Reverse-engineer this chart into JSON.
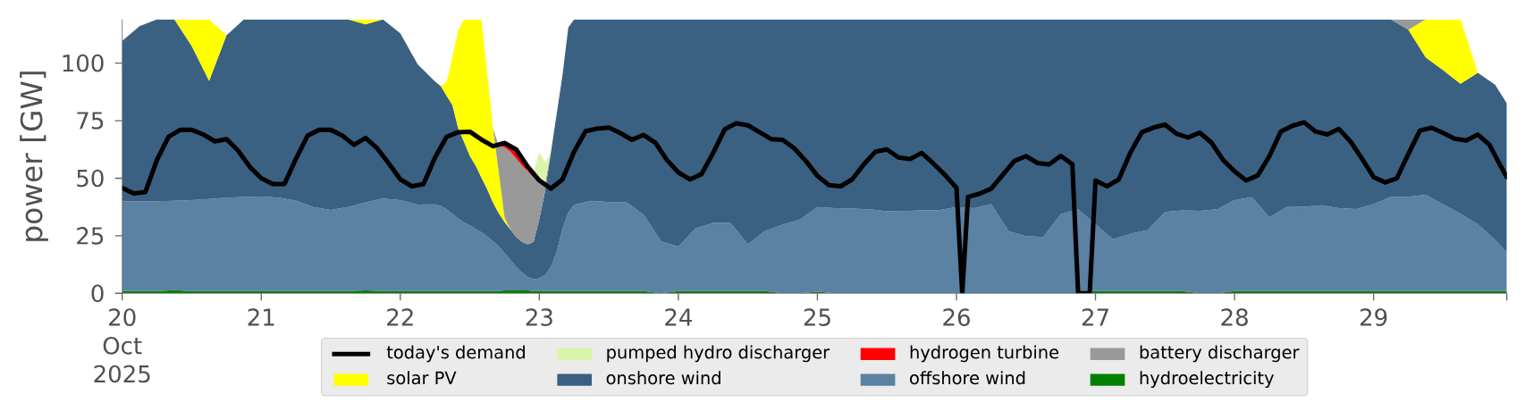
{
  "chart_data": {
    "type": "area",
    "stacked": true,
    "ylabel": "power [GW]",
    "legend": "bottom",
    "xlim": [
      "2025-10-20T00:00",
      "2025-10-29T23:00"
    ],
    "ylim": [
      0,
      119
    ],
    "xticks": [
      {
        "value": "2025-10-20",
        "label": "20 Oct 2025"
      },
      {
        "value": "2025-10-21",
        "label": "21"
      },
      {
        "value": "2025-10-22",
        "label": "22"
      },
      {
        "value": "2025-10-23",
        "label": "23"
      },
      {
        "value": "2025-10-24",
        "label": "24"
      },
      {
        "value": "2025-10-25",
        "label": "25"
      },
      {
        "value": "2025-10-26",
        "label": "26"
      },
      {
        "value": "2025-10-27",
        "label": "27"
      },
      {
        "value": "2025-10-28",
        "label": "28"
      },
      {
        "value": "2025-10-29",
        "label": "29"
      },
      {
        "value": "2025-10-29T23:00",
        "label": null
      }
    ],
    "yticks": [
      0,
      25,
      50,
      75,
      100
    ],
    "x": [
      "2025-10-20T00:00",
      "2025-10-20T03:00",
      "2025-10-20T06:00",
      "2025-10-20T09:00",
      "2025-10-20T12:00",
      "2025-10-20T15:00",
      "2025-10-20T18:00",
      "2025-10-20T21:00",
      "2025-10-21T00:00",
      "2025-10-21T03:00",
      "2025-10-21T06:00",
      "2025-10-21T09:00",
      "2025-10-21T12:00",
      "2025-10-21T15:00",
      "2025-10-21T18:00",
      "2025-10-21T21:00",
      "2025-10-22T00:00",
      "2025-10-22T03:00",
      "2025-10-22T06:00",
      "2025-10-22T07:00",
      "2025-10-22T08:00",
      "2025-10-22T09:00",
      "2025-10-22T10:00",
      "2025-10-22T11:00",
      "2025-10-22T12:00",
      "2025-10-22T13:00",
      "2025-10-22T14:00",
      "2025-10-22T15:00",
      "2025-10-22T16:00",
      "2025-10-22T17:00",
      "2025-10-22T18:00",
      "2025-10-22T19:00",
      "2025-10-22T20:00",
      "2025-10-22T21:00",
      "2025-10-22T22:00",
      "2025-10-22T23:00",
      "2025-10-23T00:00",
      "2025-10-23T01:00",
      "2025-10-23T02:00",
      "2025-10-23T03:00",
      "2025-10-23T04:00",
      "2025-10-23T05:00",
      "2025-10-23T06:00",
      "2025-10-23T09:00",
      "2025-10-23T12:00",
      "2025-10-23T15:00",
      "2025-10-23T18:00",
      "2025-10-23T21:00",
      "2025-10-24T00:00",
      "2025-10-24T03:00",
      "2025-10-24T06:00",
      "2025-10-24T09:00",
      "2025-10-24T12:00",
      "2025-10-24T15:00",
      "2025-10-24T18:00",
      "2025-10-24T21:00",
      "2025-10-25T00:00",
      "2025-10-25T03:00",
      "2025-10-25T06:00",
      "2025-10-25T09:00",
      "2025-10-25T12:00",
      "2025-10-25T15:00",
      "2025-10-25T18:00",
      "2025-10-25T21:00",
      "2025-10-26T00:00",
      "2025-10-26T03:00",
      "2025-10-26T06:00",
      "2025-10-26T09:00",
      "2025-10-26T12:00",
      "2025-10-26T15:00",
      "2025-10-26T18:00",
      "2025-10-26T21:00",
      "2025-10-27T00:00",
      "2025-10-27T03:00",
      "2025-10-27T06:00",
      "2025-10-27T09:00",
      "2025-10-27T12:00",
      "2025-10-27T15:00",
      "2025-10-27T18:00",
      "2025-10-27T21:00",
      "2025-10-28T00:00",
      "2025-10-28T03:00",
      "2025-10-28T06:00",
      "2025-10-28T09:00",
      "2025-10-28T12:00",
      "2025-10-28T15:00",
      "2025-10-28T18:00",
      "2025-10-28T21:00",
      "2025-10-29T00:00",
      "2025-10-29T03:00",
      "2025-10-29T06:00",
      "2025-10-29T09:00",
      "2025-10-29T12:00",
      "2025-10-29T15:00",
      "2025-10-29T18:00",
      "2025-10-29T21:00",
      "2025-10-29T23:00"
    ],
    "series": [
      {
        "name": "hydroelectricity",
        "color": "#008000",
        "values": [
          1,
          1,
          1,
          1.4,
          1,
          1,
          1,
          1,
          1,
          1,
          1,
          1,
          1,
          1,
          1.3,
          1,
          1,
          1,
          1,
          1,
          1,
          1,
          1,
          1,
          1,
          1,
          1,
          1,
          1,
          1,
          1.3,
          1.3,
          1.3,
          1.3,
          1.3,
          1,
          1,
          1,
          1,
          1,
          1,
          1,
          1,
          1,
          1,
          1,
          1,
          0,
          1,
          1,
          1,
          1,
          1,
          1,
          0,
          0,
          0.7,
          0,
          null,
          null,
          null,
          null,
          null,
          null,
          null,
          null,
          null,
          null,
          null,
          null,
          null,
          0,
          1,
          1,
          1,
          1,
          1,
          1,
          0,
          0,
          1,
          1,
          1,
          1,
          1,
          1,
          1,
          1,
          1,
          1,
          1,
          1,
          1,
          1,
          1,
          1,
          1
        ]
      },
      {
        "name": "offshore wind",
        "color": "#5b81a3",
        "values": [
          39,
          39,
          39,
          38.8,
          39.5,
          40,
          40.5,
          40.8,
          41,
          40.5,
          39.2,
          36.5,
          35.2,
          36.5,
          38.2,
          40.2,
          39.5,
          37.5,
          37.6,
          37,
          35.5,
          33.5,
          31.5,
          29.8,
          28.5,
          27,
          25.5,
          23.8,
          21.5,
          19.5,
          16.2,
          13.2,
          10.2,
          7.7,
          5.7,
          5.1,
          5.5,
          7,
          10.5,
          17,
          27,
          34,
          37.4,
          39.2,
          38.6,
          38.6,
          33.2,
          22.6,
          19.3,
          27.3,
          29.6,
          29.6,
          20.3,
          26.2,
          29.8,
          32,
          36.8,
          37,
          36.8,
          36.5,
          35.6,
          35.8,
          36,
          36.1,
          37.5,
          37,
          38.7,
          27,
          24.9,
          24.5,
          34.4,
          36.5,
          29,
          22.5,
          24.8,
          26.5,
          34.3,
          35,
          35.8,
          36.5,
          39.5,
          40.7,
          32,
          36.5,
          36.6,
          37.2,
          36,
          35.6,
          37.7,
          40.9,
          40.9,
          41.8,
          37.6,
          33.6,
          29,
          22.2,
          16.8
        ]
      },
      {
        "name": "onshore wind",
        "color": "#3a6182",
        "values": [
          69.7,
          76.1,
          79,
          78.8,
          66.9,
          51.3,
          70.6,
          77.2,
          77,
          77.5,
          78.8,
          81.5,
          82.8,
          81.5,
          77.3,
          77.8,
          72.5,
          61,
          53.4,
          52,
          49.3,
          47.2,
          39.1,
          35,
          30.2,
          27.5,
          23.8,
          20.4,
          16.9,
          14.3,
          13.5,
          13.2,
          13,
          13.3,
          14.3,
          16.2,
          25.8,
          36.5,
          49.8,
          60,
          66.8,
          80.5,
          80.6,
          78.8,
          79.4,
          79.4,
          84.8,
          96.4,
          98.7,
          90.7,
          88.4,
          88.4,
          97.7,
          91.8,
          89.2,
          87,
          81.5,
          82,
          82.2,
          82.5,
          83.4,
          83.2,
          83,
          82.9,
          81.5,
          82,
          80.3,
          92,
          94.1,
          94.5,
          84.6,
          82.5,
          89,
          95.5,
          93.2,
          91.5,
          83.7,
          83,
          83.2,
          82.5,
          78.5,
          77.3,
          86,
          81.5,
          81.4,
          80.8,
          82,
          82.4,
          80.3,
          77.1,
          72.6,
          59.7,
          58.4,
          56.4,
          65.8,
          67.3,
          64.7
        ]
      },
      {
        "name": "solar PV",
        "color": "#ffff00",
        "values": [
          null,
          null,
          null,
          0,
          11.6,
          26.7,
          0,
          null,
          null,
          null,
          null,
          null,
          null,
          0,
          2.2,
          0,
          null,
          null,
          null,
          0,
          6.2,
          21.1,
          42.6,
          53.2,
          59.3,
          63.5,
          68.7,
          50.5,
          32.2,
          17.8,
          1.9,
          0,
          null,
          null,
          null,
          null,
          null,
          null,
          null,
          null,
          null,
          null,
          null,
          null,
          null,
          null,
          null,
          null,
          null,
          null,
          null,
          null,
          null,
          null,
          null,
          null,
          null,
          null,
          null,
          null,
          null,
          null,
          null,
          null,
          null,
          null,
          null,
          null,
          null,
          null,
          null,
          null,
          null,
          null,
          null,
          null,
          null,
          null,
          null,
          null,
          null,
          null,
          null,
          null,
          null,
          null,
          null,
          null,
          null,
          null,
          0,
          16.5,
          22,
          28,
          0,
          null,
          null
        ]
      },
      {
        "name": "battery discharger",
        "color": "#999999",
        "values": [
          null,
          null,
          null,
          null,
          null,
          null,
          null,
          null,
          null,
          null,
          null,
          null,
          null,
          null,
          null,
          null,
          null,
          null,
          null,
          null,
          null,
          null,
          null,
          null,
          null,
          null,
          null,
          null,
          0,
          11.4,
          30.6,
          33.8,
          34,
          33.2,
          31.7,
          28.2,
          16.7,
          3.5,
          0,
          null,
          null,
          null,
          null,
          null,
          null,
          null,
          null,
          null,
          null,
          null,
          null,
          null,
          null,
          null,
          null,
          null,
          null,
          null,
          null,
          null,
          null,
          null,
          null,
          null,
          null,
          null,
          null,
          null,
          null,
          null,
          null,
          null,
          null,
          null,
          null,
          null,
          null,
          null,
          null,
          null,
          null,
          null,
          null,
          null,
          null,
          null,
          null,
          null,
          null,
          0,
          4.4,
          0,
          null,
          null,
          null,
          null,
          null
        ]
      },
      {
        "name": "hydrogen turbine",
        "color": "#ff0000",
        "values": [
          null,
          null,
          null,
          null,
          null,
          null,
          null,
          null,
          null,
          null,
          null,
          null,
          null,
          null,
          null,
          null,
          null,
          null,
          null,
          null,
          null,
          null,
          null,
          null,
          null,
          null,
          null,
          null,
          null,
          0,
          1.5,
          2.5,
          2.5,
          2,
          0.3,
          1.5,
          1.2,
          0,
          null,
          null,
          null,
          null,
          null,
          null,
          null,
          null,
          null,
          null,
          null,
          null,
          null,
          null,
          null,
          null,
          null,
          null,
          null,
          null,
          null,
          null,
          null,
          null,
          null,
          null,
          null,
          null,
          null,
          null,
          null,
          null,
          null,
          null,
          null,
          null,
          null,
          null,
          null,
          null,
          null,
          null,
          null,
          null,
          null,
          null,
          null,
          null,
          null,
          null,
          null,
          null,
          null,
          null,
          null,
          null,
          null,
          null,
          null
        ]
      },
      {
        "name": "pumped hydro discharger",
        "color": "#d8f5aa",
        "values": [
          null,
          null,
          null,
          null,
          null,
          null,
          null,
          null,
          null,
          null,
          null,
          null,
          null,
          null,
          null,
          null,
          null,
          null,
          null,
          null,
          null,
          null,
          null,
          null,
          null,
          null,
          null,
          null,
          null,
          null,
          null,
          null,
          null,
          null,
          0,
          0.5,
          11.1,
          8.6,
          0,
          null,
          null,
          null,
          null,
          null,
          null,
          null,
          null,
          null,
          null,
          null,
          null,
          null,
          null,
          null,
          null,
          null,
          null,
          null,
          null,
          null,
          null,
          null,
          null,
          null,
          null,
          null,
          null,
          null,
          null,
          null,
          null,
          null,
          null,
          null,
          null,
          null,
          null,
          null,
          null,
          null,
          null,
          null,
          null,
          null,
          null,
          null,
          null,
          null,
          null,
          null,
          null,
          null,
          null,
          null,
          null,
          null,
          null
        ]
      },
      {
        "name": "today's demand",
        "type": "line",
        "color": "#000000",
        "x": [
          "2025-10-20T00:00",
          "2025-10-20T02:00",
          "2025-10-20T04:00",
          "2025-10-20T06:00",
          "2025-10-20T08:00",
          "2025-10-20T10:00",
          "2025-10-20T12:00",
          "2025-10-20T14:00",
          "2025-10-20T16:00",
          "2025-10-20T18:00",
          "2025-10-20T20:00",
          "2025-10-20T22:00",
          "2025-10-21T00:00",
          "2025-10-21T02:00",
          "2025-10-21T04:00",
          "2025-10-21T06:00",
          "2025-10-21T08:00",
          "2025-10-21T10:00",
          "2025-10-21T12:00",
          "2025-10-21T14:00",
          "2025-10-21T16:00",
          "2025-10-21T18:00",
          "2025-10-21T20:00",
          "2025-10-21T22:00",
          "2025-10-22T00:00",
          "2025-10-22T02:00",
          "2025-10-22T04:00",
          "2025-10-22T06:00",
          "2025-10-22T08:00",
          "2025-10-22T10:00",
          "2025-10-22T12:00",
          "2025-10-22T14:00",
          "2025-10-22T16:00",
          "2025-10-22T18:00",
          "2025-10-22T20:00",
          "2025-10-22T22:00",
          "2025-10-23T00:00",
          "2025-10-23T02:00",
          "2025-10-23T04:00",
          "2025-10-23T06:00",
          "2025-10-23T08:00",
          "2025-10-23T10:00",
          "2025-10-23T12:00",
          "2025-10-23T14:00",
          "2025-10-23T16:00",
          "2025-10-23T18:00",
          "2025-10-23T20:00",
          "2025-10-23T22:00",
          "2025-10-24T00:00",
          "2025-10-24T02:00",
          "2025-10-24T04:00",
          "2025-10-24T06:00",
          "2025-10-24T08:00",
          "2025-10-24T10:00",
          "2025-10-24T12:00",
          "2025-10-24T14:00",
          "2025-10-24T16:00",
          "2025-10-24T18:00",
          "2025-10-24T20:00",
          "2025-10-24T22:00",
          "2025-10-25T00:00",
          "2025-10-25T02:00",
          "2025-10-25T04:00",
          "2025-10-25T06:00",
          "2025-10-25T08:00",
          "2025-10-25T10:00",
          "2025-10-25T12:00",
          "2025-10-25T14:00",
          "2025-10-25T16:00",
          "2025-10-25T18:00",
          "2025-10-25T20:00",
          "2025-10-25T22:00",
          "2025-10-26T00:00",
          "2025-10-26T01:00",
          "2025-10-26T02:00",
          "2025-10-26T04:00",
          "2025-10-26T06:00",
          "2025-10-26T08:00",
          "2025-10-26T10:00",
          "2025-10-26T12:00",
          "2025-10-26T14:00",
          "2025-10-26T16:00",
          "2025-10-26T18:00",
          "2025-10-26T20:00",
          "2025-10-26T21:00",
          "2025-10-26T22:00",
          "2025-10-26T23:00",
          "2025-10-27T00:00",
          "2025-10-27T02:00",
          "2025-10-27T04:00",
          "2025-10-27T06:00",
          "2025-10-27T08:00",
          "2025-10-27T10:00",
          "2025-10-27T12:00",
          "2025-10-27T14:00",
          "2025-10-27T16:00",
          "2025-10-27T18:00",
          "2025-10-27T20:00",
          "2025-10-27T22:00",
          "2025-10-28T00:00",
          "2025-10-28T02:00",
          "2025-10-28T04:00",
          "2025-10-28T06:00",
          "2025-10-28T08:00",
          "2025-10-28T10:00",
          "2025-10-28T12:00",
          "2025-10-28T14:00",
          "2025-10-28T16:00",
          "2025-10-28T18:00",
          "2025-10-28T20:00",
          "2025-10-28T22:00",
          "2025-10-29T00:00",
          "2025-10-29T02:00",
          "2025-10-29T04:00",
          "2025-10-29T06:00",
          "2025-10-29T08:00",
          "2025-10-29T10:00",
          "2025-10-29T12:00",
          "2025-10-29T14:00",
          "2025-10-29T16:00",
          "2025-10-29T18:00",
          "2025-10-29T20:00",
          "2025-10-29T22:00",
          "2025-10-29T23:00"
        ],
        "values": [
          45.8,
          43.4,
          44,
          58,
          68,
          71,
          71,
          69,
          66,
          67,
          62,
          55,
          50,
          47.5,
          47.5,
          58.5,
          68.5,
          71,
          71,
          68.5,
          64.5,
          67.5,
          63,
          56.5,
          49.5,
          46.5,
          47.5,
          59,
          68,
          70,
          70.2,
          66.8,
          63.9,
          65.3,
          62.5,
          55,
          49,
          45.5,
          49.5,
          61.5,
          70.5,
          71.5,
          72,
          69.6,
          66.7,
          68.8,
          65.5,
          58,
          52.5,
          49.5,
          51.8,
          61,
          71.2,
          73.9,
          73,
          70,
          67,
          66.7,
          63,
          57.5,
          51,
          47,
          46.5,
          49.5,
          56,
          61.5,
          62.5,
          59,
          58.3,
          61,
          56.4,
          51.5,
          45.8,
          0,
          41.9,
          43.3,
          45.5,
          51.5,
          57.5,
          59.6,
          56.6,
          56,
          59.7,
          56.1,
          0,
          0,
          0,
          49,
          46.5,
          49.4,
          61,
          70,
          72,
          73.3,
          69.3,
          67.7,
          69.8,
          65.5,
          58,
          53,
          49,
          51.2,
          59.5,
          70.3,
          72.8,
          74.3,
          70.3,
          69,
          71.4,
          66,
          58.5,
          50.5,
          48.2,
          49.9,
          60.5,
          70.7,
          71.9,
          69.7,
          67.2,
          66.4,
          69,
          64.5,
          55,
          50.5
        ]
      }
    ]
  }
}
